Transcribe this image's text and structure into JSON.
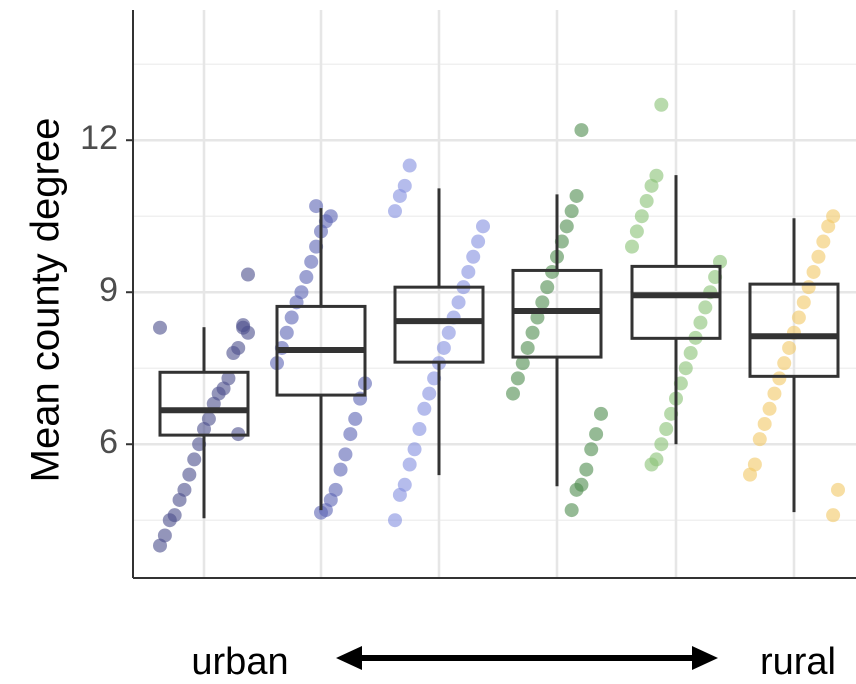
{
  "chart_data": {
    "type": "box",
    "y_label": "Mean county degree",
    "annotations": [
      "urban",
      "rural"
    ],
    "categories": [
      null,
      null,
      null,
      null,
      null,
      null
    ],
    "ylim": [
      3.36,
      14.57
    ],
    "yticks": [
      6,
      9,
      12
    ],
    "minor_yticks": [
      4.5,
      7.5,
      10.5,
      13.5
    ],
    "grid": true,
    "boxes": [
      {
        "color": "#4b4f8c",
        "stats": [
          4.54,
          6.18,
          6.67,
          7.42,
          8.31
        ],
        "points": [
          8.3,
          8.2,
          8.3,
          7.9,
          7.8,
          7.3,
          7.1,
          7.0,
          6.8,
          6.5,
          6.3,
          6.0,
          5.7,
          5.4,
          5.1,
          4.9,
          4.6,
          4.5,
          4.2,
          4.0,
          9.35,
          8.35,
          6.2
        ]
      },
      {
        "color": "#5c64b4",
        "stats": [
          4.7,
          6.97,
          7.86,
          8.72,
          10.66
        ],
        "points": [
          10.5,
          10.4,
          10.2,
          9.9,
          9.6,
          9.3,
          9.0,
          8.8,
          8.5,
          8.2,
          7.9,
          7.6,
          7.2,
          6.9,
          6.5,
          6.2,
          5.8,
          5.5,
          5.1,
          4.9,
          4.7,
          4.65,
          10.7
        ]
      },
      {
        "color": "#8390e0",
        "stats": [
          5.39,
          7.62,
          8.43,
          9.1,
          11.05
        ],
        "points": [
          11.5,
          11.1,
          10.9,
          10.6,
          10.3,
          10.0,
          9.7,
          9.4,
          9.1,
          8.8,
          8.5,
          8.2,
          7.9,
          7.6,
          7.3,
          7.0,
          6.7,
          6.3,
          5.9,
          5.6,
          5.2,
          5.0,
          4.5
        ]
      },
      {
        "color": "#4f8c4f",
        "stats": [
          5.17,
          7.72,
          8.63,
          9.43,
          10.93
        ],
        "points": [
          12.2,
          10.9,
          10.6,
          10.3,
          10.0,
          9.7,
          9.4,
          9.1,
          8.8,
          8.5,
          8.2,
          7.9,
          7.6,
          7.3,
          7.0,
          6.6,
          6.2,
          5.9,
          5.5,
          5.2,
          5.1,
          4.7
        ]
      },
      {
        "color": "#88c274",
        "stats": [
          6.0,
          8.09,
          8.94,
          9.51,
          11.31
        ],
        "points": [
          12.7,
          11.3,
          11.1,
          10.8,
          10.5,
          10.2,
          9.9,
          9.6,
          9.3,
          9.0,
          8.7,
          8.4,
          8.1,
          7.8,
          7.5,
          7.2,
          6.9,
          6.6,
          6.3,
          6.0,
          5.7,
          5.6
        ]
      },
      {
        "color": "#f2c865",
        "stats": [
          4.66,
          7.34,
          8.13,
          9.16,
          10.46
        ],
        "points": [
          10.5,
          10.3,
          10.0,
          9.7,
          9.4,
          9.1,
          8.8,
          8.5,
          8.2,
          7.9,
          7.6,
          7.3,
          7.0,
          6.7,
          6.4,
          6.1,
          5.6,
          5.4,
          5.1,
          4.6
        ]
      }
    ]
  }
}
